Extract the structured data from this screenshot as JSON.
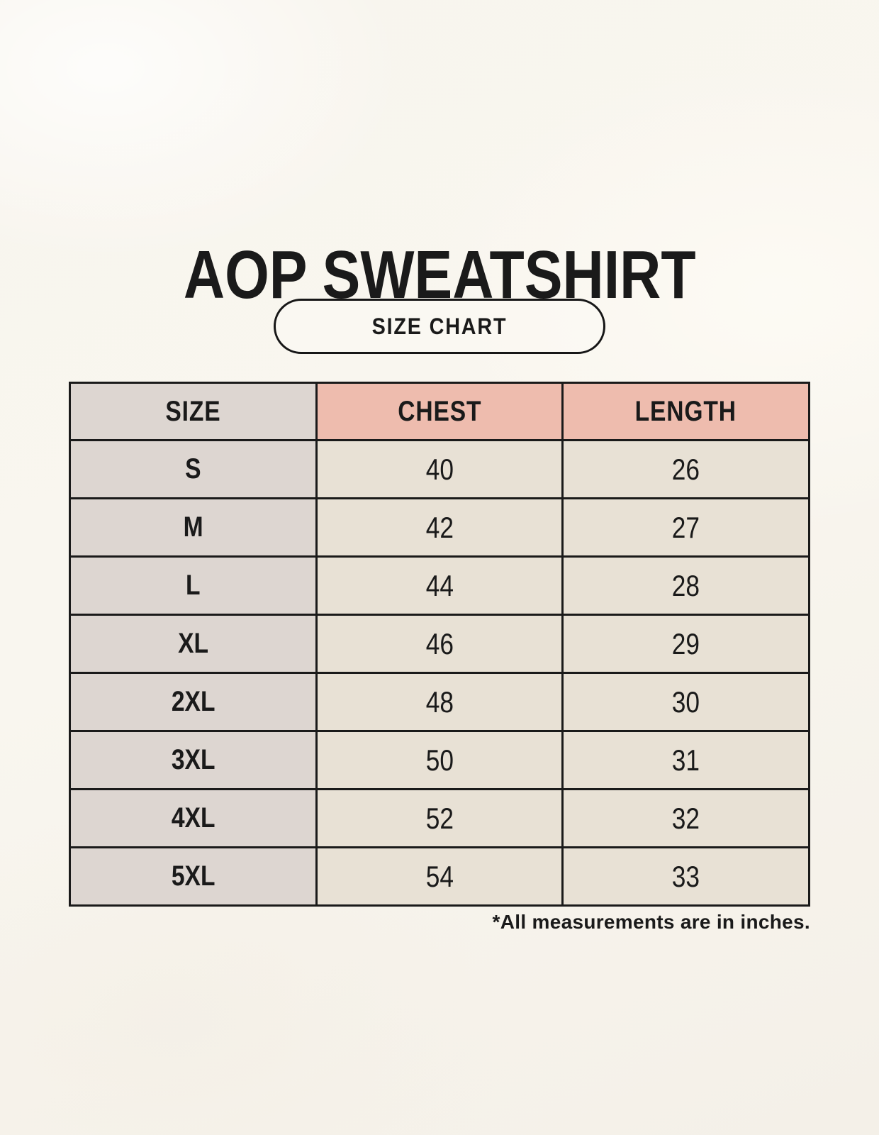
{
  "page": {
    "background_color": "#f8f5ee",
    "text_color": "#1a1a1a",
    "border_color": "#1a1a1a"
  },
  "chart_data": {
    "type": "table",
    "title": "AOP SWEATSHIRT",
    "subtitle": "SIZE CHART",
    "columns": [
      "SIZE",
      "CHEST",
      "LENGTH"
    ],
    "rows": [
      {
        "size": "S",
        "chest": 40,
        "length": 26
      },
      {
        "size": "M",
        "chest": 42,
        "length": 27
      },
      {
        "size": "L",
        "chest": 44,
        "length": 28
      },
      {
        "size": "XL",
        "chest": 46,
        "length": 29
      },
      {
        "size": "2XL",
        "chest": 48,
        "length": 30
      },
      {
        "size": "3XL",
        "chest": 50,
        "length": 31
      },
      {
        "size": "4XL",
        "chest": 52,
        "length": 32
      },
      {
        "size": "5XL",
        "chest": 54,
        "length": 33
      }
    ],
    "note": "*All measurements are in inches.",
    "layout": {
      "size_column_fill": "#ddd6d1",
      "measure_header_fill": "#eebcae",
      "measure_cell_fill": "#e8e1d5",
      "legend": "none",
      "grid": "full-borders"
    }
  }
}
